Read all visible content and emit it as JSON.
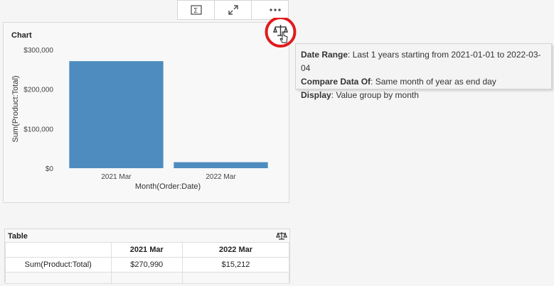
{
  "colors": {
    "bar": "#4e8cbf",
    "highlight_ring": "#e01b1b"
  },
  "toolbar": {
    "buttons": [
      "formula-icon",
      "expand-icon",
      "edit-icon"
    ],
    "more_icon": "more-icon"
  },
  "chart": {
    "title": "Chart",
    "compare_icon": "balance-scale-icon",
    "tooltip": {
      "rows": [
        {
          "label": "Date Range",
          "value": ": Last 1 years starting from 2021-01-01 to 2022-03-04"
        },
        {
          "label": "Compare Data Of",
          "value": ": Same month of year as end day"
        },
        {
          "label": "Display",
          "value": ": Value group by month"
        }
      ]
    }
  },
  "chart_data": {
    "type": "bar",
    "categories": [
      "2021 Mar",
      "2022 Mar"
    ],
    "values": [
      270990,
      15212
    ],
    "xlabel": "Month(Order:Date)",
    "ylabel": "Sum(Product:Total)",
    "ylim": [
      0,
      300000
    ],
    "yticks": [
      0,
      100000,
      200000,
      300000
    ],
    "ytick_labels": [
      "$0",
      "$100,000",
      "$200,000",
      "$300,000"
    ]
  },
  "table": {
    "title": "Table",
    "headers": [
      "",
      "2021 Mar",
      "2022 Mar"
    ],
    "rows": [
      [
        "Sum(Product:Total)",
        "$270,990",
        "$15,212"
      ]
    ]
  }
}
